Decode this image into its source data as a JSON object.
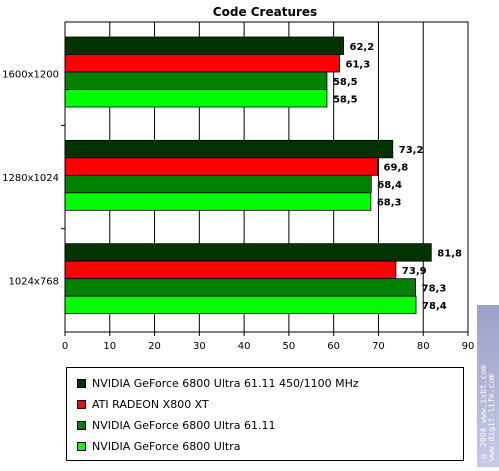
{
  "chart_data": {
    "type": "bar",
    "orientation": "horizontal",
    "title": "Code Creatures",
    "categories": [
      "1600x1200",
      "1280x1024",
      "1024x768"
    ],
    "series": [
      {
        "name": "NVIDIA GeForce 6800 Ultra 61.11 450/1100 MHz",
        "color": "#003300",
        "values": [
          62.2,
          73.2,
          81.8
        ],
        "labels": [
          "62,2",
          "73,2",
          "81,8"
        ]
      },
      {
        "name": "ATI RADEON X800 XT",
        "color": "#ff0000",
        "values": [
          61.3,
          69.8,
          73.9
        ],
        "labels": [
          "61,3",
          "69,8",
          "73,9"
        ]
      },
      {
        "name": "NVIDIA GeForce 6800 Ultra 61.11",
        "color": "#008000",
        "values": [
          58.5,
          68.4,
          78.3
        ],
        "labels": [
          "58,5",
          "68,4",
          "78,3"
        ]
      },
      {
        "name": "NVIDIA GeForce 6800 Ultra",
        "color": "#00ff00",
        "values": [
          58.5,
          68.3,
          78.4
        ],
        "labels": [
          "58,5",
          "68,3",
          "78,4"
        ]
      }
    ],
    "xlim": [
      0,
      90
    ],
    "xticks": [
      0,
      10,
      20,
      30,
      40,
      50,
      60,
      70,
      80,
      90
    ],
    "grid": "vertical",
    "legend_position": "bottom"
  },
  "watermark": {
    "lines": [
      "© 2004 www.ixbt.com",
      "www.digit-life.com"
    ]
  }
}
